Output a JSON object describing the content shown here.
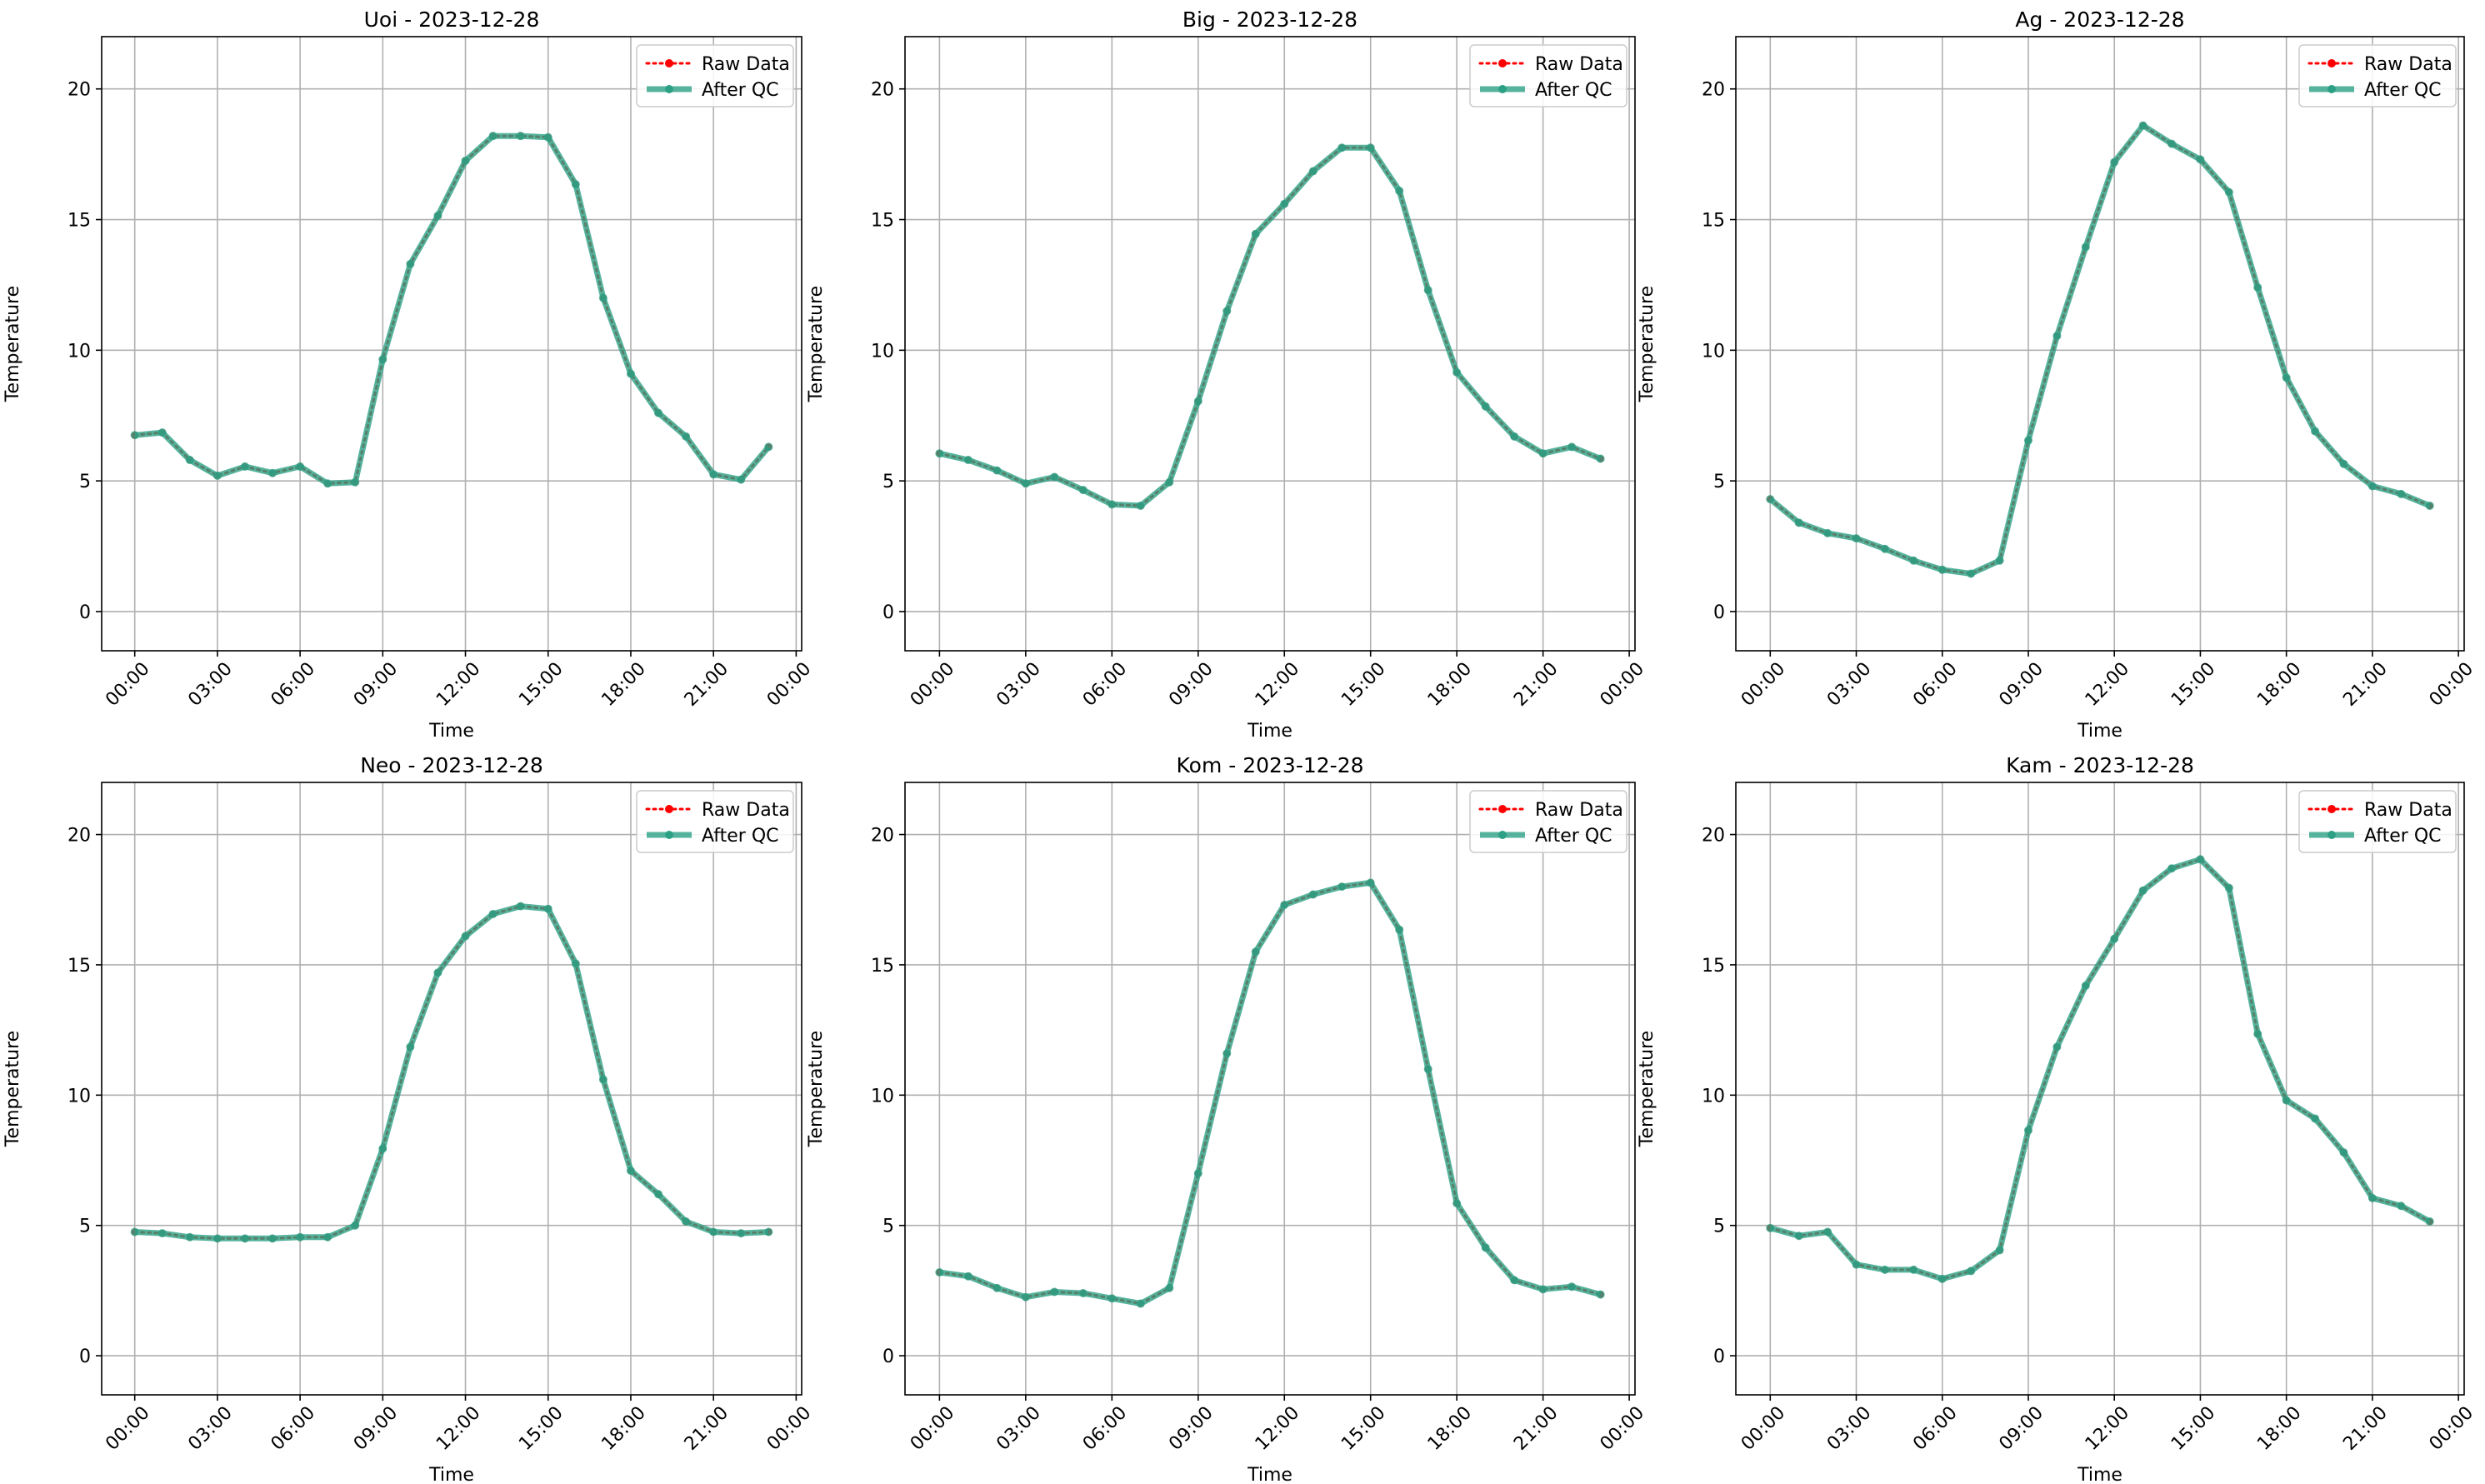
{
  "figure": {
    "legend_labels": [
      "Raw Data",
      "After QC"
    ],
    "colors": {
      "raw": "#ff0000",
      "qc": "#2ca085",
      "grid": "#b0b0b0"
    },
    "xlabel": "Time",
    "ylabel": "Temperature",
    "x_ticks": [
      "00:00",
      "03:00",
      "06:00",
      "09:00",
      "12:00",
      "15:00",
      "18:00",
      "21:00",
      "00:00"
    ],
    "y_ticks": [
      "0",
      "5",
      "10",
      "15",
      "20"
    ]
  },
  "chart_data": [
    {
      "type": "line",
      "title": "Uoi - 2023-12-28",
      "xlabel": "Time",
      "ylabel": "Temperature",
      "ylim": [
        -1.5,
        22
      ],
      "x_range_hours": [
        -1.2,
        24.2
      ],
      "legend": "top-right",
      "grid": true,
      "x_hours": [
        0,
        1,
        2,
        3,
        4,
        5,
        6,
        7,
        8,
        9,
        10,
        11,
        12,
        13,
        14,
        15,
        16,
        17,
        18,
        19,
        20,
        21,
        22,
        23
      ],
      "series": [
        {
          "name": "Raw Data",
          "values": [
            6.75,
            6.85,
            5.8,
            5.2,
            5.55,
            5.3,
            5.55,
            4.9,
            4.95,
            9.65,
            13.3,
            15.15,
            17.25,
            18.2,
            18.2,
            18.15,
            16.35,
            12.0,
            9.1,
            7.6,
            6.7,
            5.25,
            5.05,
            6.3
          ]
        },
        {
          "name": "After QC",
          "values": [
            6.75,
            6.85,
            5.8,
            5.2,
            5.55,
            5.3,
            5.55,
            4.9,
            4.95,
            9.65,
            13.3,
            15.15,
            17.25,
            18.2,
            18.2,
            18.15,
            16.35,
            12.0,
            9.1,
            7.6,
            6.7,
            5.25,
            5.05,
            6.3
          ]
        }
      ]
    },
    {
      "type": "line",
      "title": "Big - 2023-12-28",
      "xlabel": "Time",
      "ylabel": "Temperature",
      "ylim": [
        -1.5,
        22
      ],
      "x_range_hours": [
        -1.2,
        24.2
      ],
      "legend": "top-right",
      "grid": true,
      "x_hours": [
        0,
        1,
        2,
        3,
        4,
        5,
        6,
        7,
        8,
        9,
        10,
        11,
        12,
        13,
        14,
        15,
        16,
        17,
        18,
        19,
        20,
        21,
        22,
        23
      ],
      "series": [
        {
          "name": "Raw Data",
          "values": [
            6.05,
            5.8,
            5.4,
            4.9,
            5.15,
            4.65,
            4.1,
            4.05,
            4.95,
            8.05,
            11.5,
            14.45,
            15.6,
            16.85,
            17.75,
            17.75,
            16.1,
            12.3,
            9.15,
            7.85,
            6.7,
            6.05,
            6.3,
            5.85
          ]
        },
        {
          "name": "After QC",
          "values": [
            6.05,
            5.8,
            5.4,
            4.9,
            5.15,
            4.65,
            4.1,
            4.05,
            4.95,
            8.05,
            11.5,
            14.45,
            15.6,
            16.85,
            17.75,
            17.75,
            16.1,
            12.3,
            9.15,
            7.85,
            6.7,
            6.05,
            6.3,
            5.85
          ]
        }
      ]
    },
    {
      "type": "line",
      "title": "Ag - 2023-12-28",
      "xlabel": "Time",
      "ylabel": "Temperature",
      "ylim": [
        -1.5,
        22
      ],
      "x_range_hours": [
        -1.2,
        24.2
      ],
      "legend": "top-right",
      "grid": true,
      "x_hours": [
        0,
        1,
        2,
        3,
        4,
        5,
        6,
        7,
        8,
        9,
        10,
        11,
        12,
        13,
        14,
        15,
        16,
        17,
        18,
        19,
        20,
        21,
        22,
        23
      ],
      "series": [
        {
          "name": "Raw Data",
          "values": [
            4.3,
            3.4,
            3.0,
            2.8,
            2.4,
            1.95,
            1.6,
            1.45,
            1.95,
            6.55,
            10.55,
            13.95,
            17.2,
            18.6,
            17.9,
            17.3,
            16.05,
            12.4,
            8.95,
            6.9,
            5.65,
            4.8,
            4.5,
            4.05
          ]
        },
        {
          "name": "After QC",
          "values": [
            4.3,
            3.4,
            3.0,
            2.8,
            2.4,
            1.95,
            1.6,
            1.45,
            1.95,
            6.55,
            10.55,
            13.95,
            17.2,
            18.6,
            17.9,
            17.3,
            16.05,
            12.4,
            8.95,
            6.9,
            5.65,
            4.8,
            4.5,
            4.05
          ]
        }
      ]
    },
    {
      "type": "line",
      "title": "Neo - 2023-12-28",
      "xlabel": "Time",
      "ylabel": "Temperature",
      "ylim": [
        -1.5,
        22
      ],
      "x_range_hours": [
        -1.2,
        24.2
      ],
      "legend": "top-right",
      "grid": true,
      "x_hours": [
        0,
        1,
        2,
        3,
        4,
        5,
        6,
        7,
        8,
        9,
        10,
        11,
        12,
        13,
        14,
        15,
        16,
        17,
        18,
        19,
        20,
        21,
        22,
        23
      ],
      "series": [
        {
          "name": "Raw Data",
          "values": [
            4.75,
            4.7,
            4.55,
            4.5,
            4.5,
            4.5,
            4.55,
            4.55,
            5.0,
            7.95,
            11.85,
            14.7,
            16.1,
            16.95,
            17.25,
            17.15,
            15.05,
            10.6,
            7.1,
            6.2,
            5.15,
            4.75,
            4.7,
            4.75
          ]
        },
        {
          "name": "After QC",
          "values": [
            4.75,
            4.7,
            4.55,
            4.5,
            4.5,
            4.5,
            4.55,
            4.55,
            5.0,
            7.95,
            11.85,
            14.7,
            16.1,
            16.95,
            17.25,
            17.15,
            15.05,
            10.6,
            7.1,
            6.2,
            5.15,
            4.75,
            4.7,
            4.75
          ]
        }
      ]
    },
    {
      "type": "line",
      "title": "Kom - 2023-12-28",
      "xlabel": "Time",
      "ylabel": "Temperature",
      "ylim": [
        -1.5,
        22
      ],
      "x_range_hours": [
        -1.2,
        24.2
      ],
      "legend": "top-right",
      "grid": true,
      "x_hours": [
        0,
        1,
        2,
        3,
        4,
        5,
        6,
        7,
        8,
        9,
        10,
        11,
        12,
        13,
        14,
        15,
        16,
        17,
        18,
        19,
        20,
        21,
        22,
        23
      ],
      "series": [
        {
          "name": "Raw Data",
          "values": [
            3.2,
            3.05,
            2.6,
            2.25,
            2.45,
            2.4,
            2.2,
            2.0,
            2.6,
            7.0,
            11.6,
            15.5,
            17.3,
            17.7,
            18.0,
            18.15,
            16.35,
            11.0,
            5.85,
            4.15,
            2.9,
            2.55,
            2.65,
            2.35
          ]
        },
        {
          "name": "After QC",
          "values": [
            3.2,
            3.05,
            2.6,
            2.25,
            2.45,
            2.4,
            2.2,
            2.0,
            2.6,
            7.0,
            11.6,
            15.5,
            17.3,
            17.7,
            18.0,
            18.15,
            16.35,
            11.0,
            5.85,
            4.15,
            2.9,
            2.55,
            2.65,
            2.35
          ]
        }
      ]
    },
    {
      "type": "line",
      "title": "Kam - 2023-12-28",
      "xlabel": "Time",
      "ylabel": "Temperature",
      "ylim": [
        -1.5,
        22
      ],
      "x_range_hours": [
        -1.2,
        24.2
      ],
      "legend": "top-right",
      "grid": true,
      "x_hours": [
        0,
        1,
        2,
        3,
        4,
        5,
        6,
        7,
        8,
        9,
        10,
        11,
        12,
        13,
        14,
        15,
        16,
        17,
        18,
        19,
        20,
        21,
        22,
        23
      ],
      "series": [
        {
          "name": "Raw Data",
          "values": [
            4.9,
            4.6,
            4.75,
            3.5,
            3.3,
            3.3,
            2.95,
            3.25,
            4.05,
            8.65,
            11.85,
            14.2,
            16.0,
            17.85,
            18.7,
            19.05,
            17.95,
            12.35,
            9.8,
            9.1,
            7.8,
            6.05,
            5.75,
            5.15
          ]
        },
        {
          "name": "After QC",
          "values": [
            4.9,
            4.6,
            4.75,
            3.5,
            3.3,
            3.3,
            2.95,
            3.25,
            4.05,
            8.65,
            11.85,
            14.2,
            16.0,
            17.85,
            18.7,
            19.05,
            17.95,
            12.35,
            9.8,
            9.1,
            7.8,
            6.05,
            5.75,
            5.15
          ]
        }
      ]
    }
  ]
}
